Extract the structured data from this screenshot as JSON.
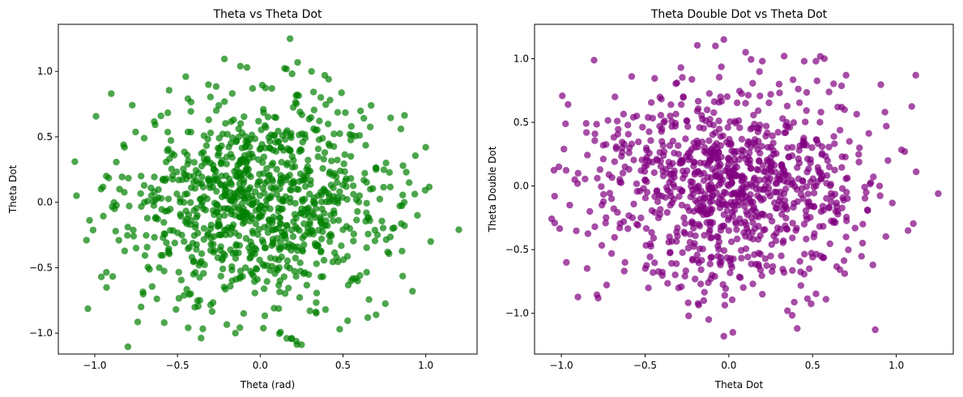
{
  "chart_data": [
    {
      "type": "scatter",
      "title": "Theta vs Theta Dot",
      "xlabel": "Theta (rad)",
      "ylabel": "Theta Dot",
      "xlim": [
        -1.22,
        1.31
      ],
      "ylim": [
        -1.16,
        1.36
      ],
      "xticks": [
        "−1.0",
        "−0.5",
        "0.0",
        "0.5",
        "1.0"
      ],
      "xtick_values": [
        -1.0,
        -0.5,
        0.0,
        0.5,
        1.0
      ],
      "yticks": [
        "−1.0",
        "−0.5",
        "0.0",
        "0.5",
        "1.0"
      ],
      "ytick_values": [
        -1.0,
        -0.5,
        0.0,
        0.5,
        1.0
      ],
      "color": "#008000",
      "alpha": 0.7,
      "grid": false,
      "n_points": 1000,
      "x_std": 0.4,
      "y_std": 0.4,
      "points": [
        [
          0.18,
          1.25
        ],
        [
          -0.12,
          1.04
        ],
        [
          -0.08,
          1.03
        ],
        [
          -0.45,
          0.96
        ],
        [
          -0.9,
          0.83
        ],
        [
          -1.12,
          0.31
        ],
        [
          -1.11,
          0.05
        ],
        [
          -1.05,
          -0.29
        ],
        [
          -0.96,
          -0.57
        ],
        [
          -0.72,
          -0.8
        ],
        [
          -0.58,
          -0.92
        ],
        [
          -0.15,
          -1.0
        ],
        [
          0.16,
          -1.04
        ],
        [
          0.19,
          -1.04
        ],
        [
          0.48,
          -0.97
        ],
        [
          0.7,
          -0.86
        ],
        [
          0.92,
          -0.68
        ],
        [
          1.03,
          -0.3
        ],
        [
          1.2,
          -0.21
        ],
        [
          1.0,
          0.42
        ],
        [
          0.85,
          0.56
        ],
        [
          0.67,
          0.74
        ],
        [
          0.39,
          0.97
        ],
        [
          0.31,
          1.0
        ],
        [
          0.07,
          0.87
        ],
        [
          -0.25,
          0.74
        ],
        [
          -0.6,
          0.66
        ],
        [
          -0.82,
          0.42
        ],
        [
          -0.93,
          0.2
        ],
        [
          -0.8,
          -0.19
        ],
        [
          -0.61,
          -0.5
        ],
        [
          -0.42,
          -0.7
        ],
        [
          -0.1,
          -0.85
        ],
        [
          0.3,
          -0.83
        ],
        [
          0.55,
          -0.6
        ],
        [
          0.77,
          -0.38
        ],
        [
          0.87,
          0.0
        ],
        [
          0.76,
          0.3
        ],
        [
          0.55,
          0.58
        ],
        [
          0.24,
          0.69
        ],
        [
          -0.01,
          0.62
        ],
        [
          -0.3,
          0.53
        ],
        [
          -0.52,
          0.36
        ],
        [
          -0.64,
          0.08
        ],
        [
          -0.58,
          -0.24
        ],
        [
          -0.4,
          -0.45
        ],
        [
          -0.17,
          -0.6
        ],
        [
          0.12,
          -0.6
        ],
        [
          0.34,
          -0.47
        ],
        [
          0.5,
          -0.21
        ],
        [
          0.52,
          0.12
        ],
        [
          0.39,
          0.38
        ],
        [
          0.15,
          0.48
        ],
        [
          -0.09,
          0.42
        ],
        [
          -0.28,
          0.25
        ],
        [
          -0.35,
          0.0
        ],
        [
          -0.25,
          -0.25
        ],
        [
          -0.05,
          -0.33
        ],
        [
          0.15,
          -0.25
        ],
        [
          0.25,
          -0.05
        ],
        [
          0.2,
          0.15
        ],
        [
          0.02,
          0.22
        ],
        [
          -0.12,
          0.1
        ],
        [
          -0.08,
          -0.08
        ],
        [
          0.06,
          -0.05
        ],
        [
          -0.02,
          0.0
        ],
        [
          0.05,
          0.03
        ],
        [
          -0.05,
          -0.02
        ],
        [
          0.1,
          0.06
        ],
        [
          -0.1,
          -0.12
        ],
        [
          0.0,
          -0.1
        ],
        [
          0.08,
          0.1
        ],
        [
          -0.03,
          0.08
        ],
        [
          0.12,
          -0.12
        ],
        [
          -0.15,
          0.05
        ],
        [
          0.18,
          0.0
        ],
        [
          -0.2,
          -0.05
        ],
        [
          0.22,
          0.1
        ],
        [
          -0.18,
          0.15
        ],
        [
          0.3,
          -0.15
        ],
        [
          -0.25,
          -0.18
        ],
        [
          0.28,
          0.25
        ],
        [
          -0.3,
          0.3
        ],
        [
          0.35,
          0.05
        ],
        [
          -0.38,
          -0.1
        ],
        [
          0.42,
          -0.3
        ],
        [
          -0.4,
          0.2
        ],
        [
          0.45,
          0.22
        ],
        [
          -0.46,
          -0.3
        ],
        [
          0.6,
          0.05
        ],
        [
          -0.7,
          0.0
        ],
        [
          0.65,
          -0.12
        ],
        [
          -0.72,
          0.2
        ],
        [
          0.7,
          0.25
        ],
        [
          -0.75,
          -0.35
        ],
        [
          0.8,
          -0.2
        ],
        [
          -0.85,
          0.1
        ],
        [
          0.9,
          0.15
        ],
        [
          -0.88,
          -0.05
        ],
        [
          0.95,
          -0.1
        ]
      ]
    },
    {
      "type": "scatter",
      "title": "Theta Double Dot vs Theta Dot",
      "xlabel": "Theta Dot",
      "ylabel": "Theta Double Dot",
      "xlim": [
        -1.16,
        1.34
      ],
      "ylim": [
        -1.32,
        1.27
      ],
      "xticks": [
        "−1.0",
        "−0.5",
        "0.0",
        "0.5",
        "1.0"
      ],
      "xtick_values": [
        -1.0,
        -0.5,
        0.0,
        0.5,
        1.0
      ],
      "yticks": [
        "−1.0",
        "−0.5",
        "0.0",
        "0.5",
        "1.0"
      ],
      "ytick_values": [
        -1.0,
        -0.5,
        0.0,
        0.5,
        1.0
      ],
      "color": "#800080",
      "alpha": 0.7,
      "grid": false,
      "n_points": 1000,
      "x_std": 0.4,
      "y_std": 0.4,
      "points": [
        [
          -0.03,
          1.15
        ],
        [
          -0.08,
          1.1
        ],
        [
          0.1,
          1.05
        ],
        [
          0.33,
          1.02
        ],
        [
          0.45,
          0.98
        ],
        [
          0.52,
          0.98
        ],
        [
          -0.58,
          0.86
        ],
        [
          -0.96,
          0.64
        ],
        [
          -1.04,
          -0.08
        ],
        [
          -1.04,
          -0.29
        ],
        [
          -0.97,
          -0.6
        ],
        [
          -0.78,
          -0.88
        ],
        [
          -0.24,
          -1.02
        ],
        [
          -0.03,
          -1.18
        ],
        [
          0.35,
          -0.98
        ],
        [
          0.58,
          -0.89
        ],
        [
          0.86,
          -0.62
        ],
        [
          1.07,
          -0.35
        ],
        [
          1.25,
          -0.06
        ],
        [
          1.05,
          0.27
        ],
        [
          0.94,
          0.47
        ],
        [
          0.7,
          0.87
        ],
        [
          0.2,
          0.98
        ],
        [
          -0.31,
          0.81
        ],
        [
          -0.68,
          0.7
        ],
        [
          -0.85,
          0.42
        ],
        [
          -0.9,
          0.1
        ],
        [
          -0.83,
          -0.2
        ],
        [
          -0.7,
          -0.53
        ],
        [
          -0.48,
          -0.8
        ],
        [
          -0.15,
          -0.9
        ],
        [
          0.2,
          -0.85
        ],
        [
          0.48,
          -0.65
        ],
        [
          0.7,
          -0.4
        ],
        [
          0.82,
          -0.05
        ],
        [
          0.78,
          0.3
        ],
        [
          0.55,
          0.58
        ],
        [
          0.25,
          0.72
        ],
        [
          -0.05,
          0.7
        ],
        [
          -0.35,
          0.55
        ],
        [
          -0.58,
          0.33
        ],
        [
          -0.65,
          0.03
        ],
        [
          -0.55,
          -0.3
        ],
        [
          -0.35,
          -0.52
        ],
        [
          -0.05,
          -0.62
        ],
        [
          0.25,
          -0.55
        ],
        [
          0.45,
          -0.3
        ],
        [
          0.52,
          0.0
        ],
        [
          0.42,
          0.28
        ],
        [
          0.18,
          0.45
        ],
        [
          -0.08,
          0.42
        ],
        [
          -0.3,
          0.25
        ],
        [
          -0.35,
          -0.05
        ],
        [
          -0.22,
          -0.28
        ],
        [
          0.0,
          -0.35
        ],
        [
          0.2,
          -0.22
        ],
        [
          0.28,
          0.02
        ],
        [
          0.18,
          0.2
        ],
        [
          0.0,
          0.22
        ],
        [
          -0.15,
          0.1
        ],
        [
          -0.1,
          -0.08
        ],
        [
          0.05,
          -0.05
        ],
        [
          0.0,
          0.0
        ],
        [
          -0.05,
          0.05
        ],
        [
          0.08,
          0.08
        ],
        [
          -0.1,
          -0.02
        ],
        [
          0.12,
          -0.1
        ],
        [
          -0.02,
          0.12
        ],
        [
          0.15,
          0.05
        ],
        [
          -0.18,
          0.0
        ],
        [
          0.02,
          -0.15
        ],
        [
          -0.12,
          0.18
        ],
        [
          0.25,
          0.12
        ],
        [
          -0.25,
          0.12
        ],
        [
          0.3,
          -0.12
        ],
        [
          -0.28,
          -0.15
        ],
        [
          0.35,
          0.3
        ],
        [
          -0.4,
          0.35
        ],
        [
          0.4,
          -0.35
        ],
        [
          -0.42,
          -0.25
        ],
        [
          0.6,
          0.15
        ],
        [
          -0.62,
          0.15
        ],
        [
          0.65,
          -0.2
        ],
        [
          -0.7,
          -0.1
        ],
        [
          0.72,
          0.35
        ],
        [
          -0.75,
          0.32
        ],
        [
          0.8,
          -0.3
        ],
        [
          -0.8,
          -0.32
        ],
        [
          0.9,
          0.0
        ],
        [
          -0.92,
          0.05
        ],
        [
          0.95,
          0.2
        ],
        [
          -0.95,
          -0.15
        ],
        [
          0.55,
          -0.55
        ],
        [
          -0.55,
          0.55
        ],
        [
          0.1,
          0.65
        ],
        [
          -0.1,
          -0.7
        ],
        [
          0.3,
          0.8
        ],
        [
          -0.3,
          -0.8
        ],
        [
          0.65,
          0.62
        ],
        [
          -0.62,
          -0.6
        ]
      ]
    }
  ]
}
